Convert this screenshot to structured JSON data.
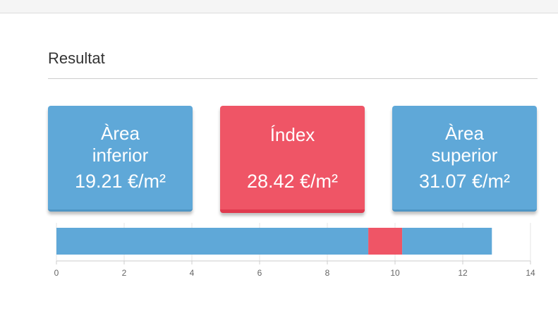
{
  "header": {
    "title": "Resultat"
  },
  "cards": [
    {
      "label": "Àrea inferior",
      "value": "19.21 €/m²"
    },
    {
      "label": "Índex",
      "value": "28.42 €/m²"
    },
    {
      "label": "Àrea superior",
      "value": "31.07 €/m²"
    }
  ],
  "chart_data": {
    "type": "stacked-bar-horizontal",
    "categories": [
      null
    ],
    "series": [
      {
        "color": "#5fa8d8",
        "values": [
          9.21
        ]
      },
      {
        "color": "#ef5566",
        "values": [
          1
        ]
      },
      {
        "color": "#5fa8d8",
        "values": [
          2.65
        ]
      }
    ],
    "xlim": [
      0,
      14
    ],
    "xticks": [
      0,
      2,
      4,
      6,
      8,
      10,
      12,
      14
    ],
    "grid": true
  }
}
